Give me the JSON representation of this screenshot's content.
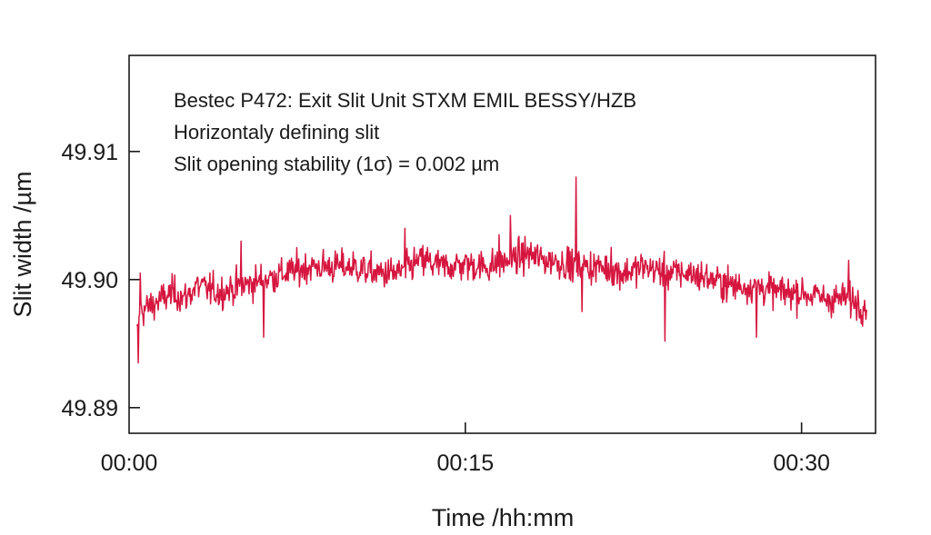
{
  "chart_data": {
    "type": "line",
    "title": "",
    "annotations": [
      "Bestec P472: Exit Slit Unit STXM EMIL BESSY/HZB",
      "Horizontaly defining slit",
      "Slit opening stability (1σ) = 0.002 µm"
    ],
    "xlabel": "Time /hh:mm",
    "ylabel": "Slit width /µm",
    "x_unit": "minutes",
    "xlim": [
      0,
      33.3
    ],
    "ylim": [
      49.888,
      49.9175
    ],
    "x_ticks": [
      {
        "value": 0,
        "label": "00:00"
      },
      {
        "value": 15,
        "label": "00:15"
      },
      {
        "value": 30,
        "label": "00:30"
      }
    ],
    "y_ticks": [
      {
        "value": 49.89,
        "label": "49.89"
      },
      {
        "value": 49.9,
        "label": "49.90"
      },
      {
        "value": 49.91,
        "label": "49.91"
      }
    ],
    "grid": false,
    "line_color": "#d6163f",
    "series": [
      {
        "x": [
          0.35,
          0.5,
          1.0,
          1.5,
          2.0,
          2.5,
          3.0,
          4.0,
          5.0,
          6.0,
          7.0,
          8.0,
          9.0,
          10.0,
          11.0,
          12.0,
          13.0,
          14.0,
          15.0,
          16.0,
          17.0,
          17.8,
          18.5,
          19.0,
          20.0,
          21.0,
          22.0,
          23.0,
          24.0,
          25.0,
          26.0,
          27.0,
          28.0,
          29.0,
          30.0,
          31.0,
          32.0,
          32.9
        ],
        "values": [
          49.8955,
          49.8975,
          49.898,
          49.8985,
          49.899,
          49.8985,
          49.8995,
          49.899,
          49.8995,
          49.9,
          49.9005,
          49.901,
          49.901,
          49.901,
          49.9005,
          49.9005,
          49.9015,
          49.901,
          49.9012,
          49.901,
          49.9015,
          49.902,
          49.9015,
          49.9015,
          49.901,
          49.901,
          49.9005,
          49.901,
          49.9005,
          49.9005,
          49.9,
          49.8995,
          49.8995,
          49.899,
          49.899,
          49.8985,
          49.8985,
          49.898
        ],
        "noise_sigma": 0.002,
        "spikes": [
          {
            "x": 0.4,
            "value": 49.8935
          },
          {
            "x": 0.5,
            "value": 49.9005
          },
          {
            "x": 5.0,
            "value": 49.903
          },
          {
            "x": 6.0,
            "value": 49.8955
          },
          {
            "x": 12.3,
            "value": 49.904
          },
          {
            "x": 13.3,
            "value": 49.9025
          },
          {
            "x": 16.5,
            "value": 49.9035
          },
          {
            "x": 17.0,
            "value": 49.905
          },
          {
            "x": 19.6,
            "value": 49.9025
          },
          {
            "x": 19.95,
            "value": 49.908
          },
          {
            "x": 20.2,
            "value": 49.8975
          },
          {
            "x": 21.5,
            "value": 49.9025
          },
          {
            "x": 23.9,
            "value": 49.8952
          },
          {
            "x": 28.0,
            "value": 49.8955
          },
          {
            "x": 32.1,
            "value": 49.9015
          },
          {
            "x": 32.6,
            "value": 49.897
          }
        ]
      }
    ]
  }
}
